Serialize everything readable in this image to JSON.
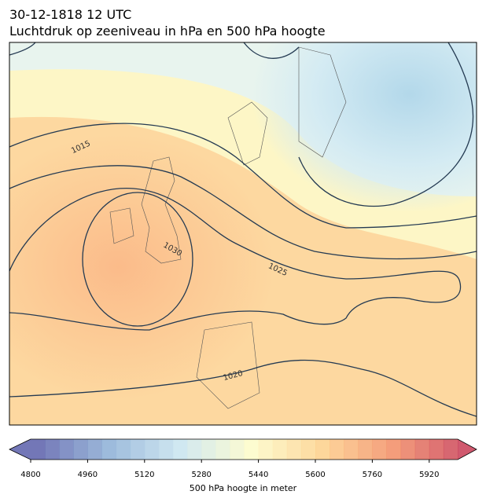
{
  "header": {
    "date": "30-12-1818 12 UTC",
    "subtitle": "Luchtdruk op zeeniveau in hPa en 500 hPa hoogte"
  },
  "map": {
    "contour_labels": [
      "1015",
      "1030",
      "1025",
      "1020"
    ]
  },
  "colorbar": {
    "range": [
      4800,
      6000
    ],
    "ticks": [
      4800,
      4960,
      5120,
      5280,
      5440,
      5600,
      5760,
      5920
    ],
    "label": "500 hPa hoogte in meter"
  }
}
